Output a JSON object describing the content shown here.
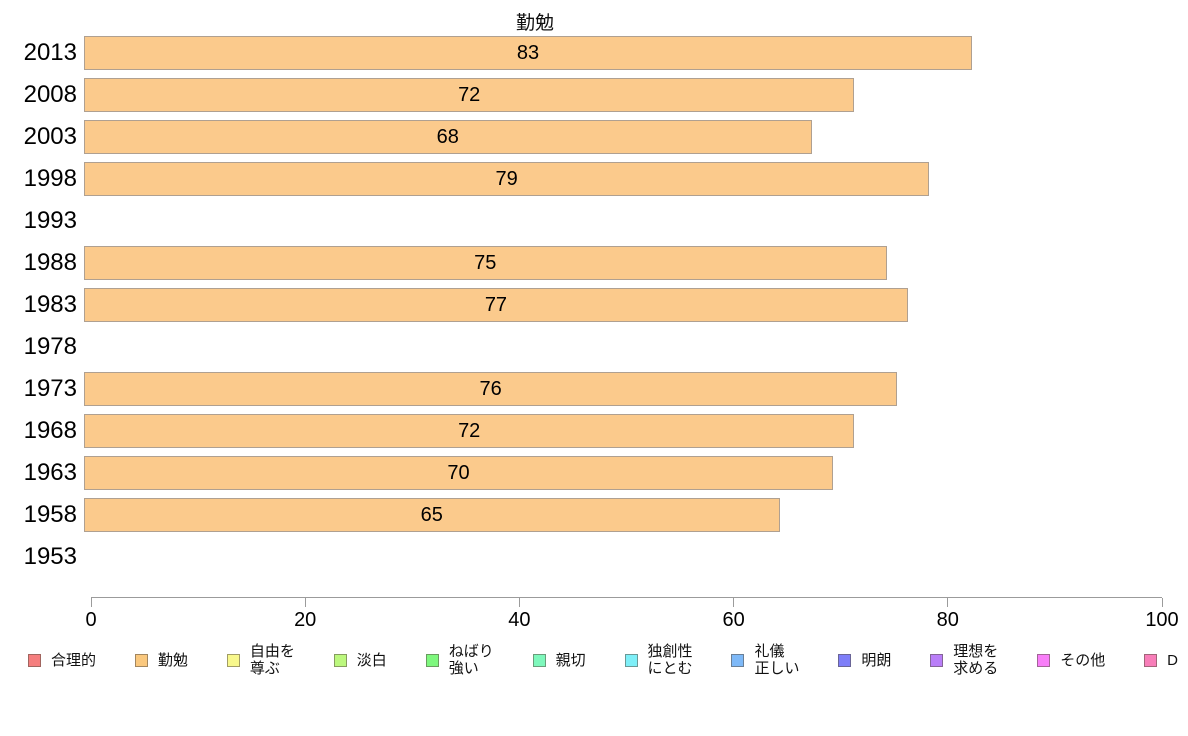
{
  "title": "勤勉",
  "chart_data": {
    "type": "bar",
    "orientation": "horizontal",
    "title": "勤勉",
    "categories": [
      "2013",
      "2008",
      "2003",
      "1998",
      "1993",
      "1988",
      "1983",
      "1978",
      "1973",
      "1968",
      "1963",
      "1958",
      "1953"
    ],
    "values": [
      83,
      72,
      68,
      79,
      null,
      75,
      77,
      null,
      76,
      72,
      70,
      65,
      null
    ],
    "xlabel": "",
    "ylabel": "",
    "xlim": [
      0,
      100
    ],
    "x_ticks": [
      0,
      20,
      40,
      60,
      80,
      100
    ],
    "grid": false,
    "bar_color": "#FBCA8C",
    "bar_border_color": "#AFA091",
    "axis_color": "#9b9b9b",
    "legend_position": "bottom",
    "legend": [
      {
        "label": "合理的",
        "color": "#F57E7E"
      },
      {
        "label": "勤勉",
        "color": "#FAC87E"
      },
      {
        "label": "自由を\n尊ぶ",
        "color": "#F8F88C"
      },
      {
        "label": "淡白",
        "color": "#BCF87E"
      },
      {
        "label": "ねばり\n強い",
        "color": "#7EF87E"
      },
      {
        "label": "親切",
        "color": "#7EF8BC"
      },
      {
        "label": "独創性\nにとむ",
        "color": "#7EEFF8"
      },
      {
        "label": "礼儀\n正しい",
        "color": "#7EB9F8"
      },
      {
        "label": "明朗",
        "color": "#7E7EF8"
      },
      {
        "label": "理想を\n求める",
        "color": "#B97EF8"
      },
      {
        "label": "その他",
        "color": "#F87EF8"
      },
      {
        "label": "D",
        "color": "#F87EB9"
      }
    ]
  }
}
